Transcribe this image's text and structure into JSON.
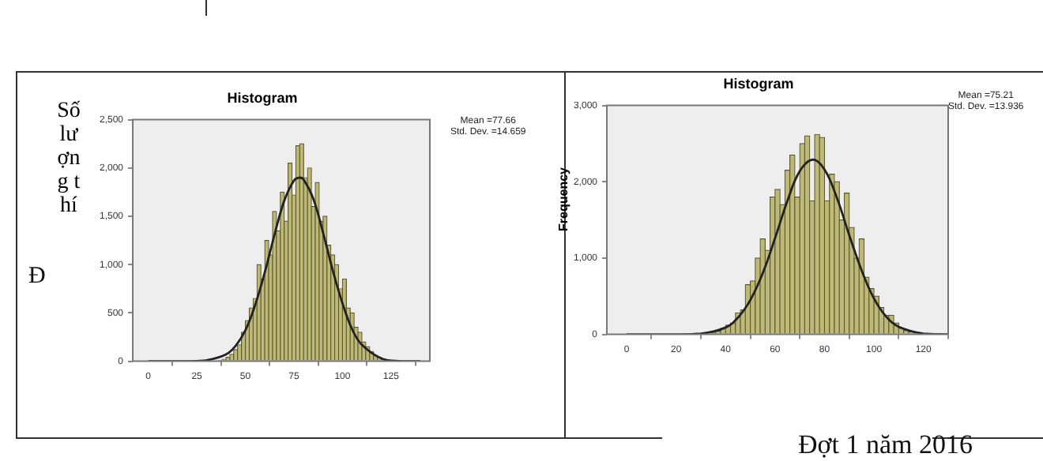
{
  "chart_data": [
    {
      "type": "histogram",
      "title": "Histogram",
      "ylabel": "Số lượng thí",
      "annotations": [
        "Mean =77.66",
        "Std. Dev. =14.659",
        "Đ"
      ],
      "bins": [
        36,
        38,
        40,
        42,
        44,
        46,
        48,
        50,
        52,
        54,
        56,
        58,
        60,
        62,
        64,
        66,
        68,
        70,
        72,
        74,
        76,
        78,
        80,
        82,
        84,
        86,
        88,
        90,
        92,
        94,
        96,
        98,
        100,
        102,
        104,
        106,
        108,
        110,
        112,
        114,
        116,
        118,
        120,
        122,
        124,
        126
      ],
      "values": [
        10,
        20,
        40,
        70,
        120,
        170,
        300,
        420,
        550,
        650,
        1000,
        850,
        1250,
        1100,
        1550,
        1350,
        1750,
        1450,
        2050,
        1720,
        2230,
        2250,
        1900,
        2000,
        1600,
        1850,
        1450,
        1500,
        1200,
        1100,
        1000,
        750,
        850,
        550,
        500,
        350,
        300,
        200,
        150,
        100,
        60,
        40,
        20,
        10,
        null
      ],
      "color": "#bfb977",
      "series": [
        {
          "type": "line",
          "color": "#222222",
          "x": [
            0,
            20,
            30,
            40,
            45,
            50,
            55,
            60,
            65,
            70,
            75,
            77.66,
            80,
            85,
            90,
            95,
            100,
            105,
            110,
            120,
            130,
            140
          ],
          "values": [
            0,
            0,
            10,
            70,
            160,
            320,
            580,
            920,
            1310,
            1660,
            1870,
            1900,
            1880,
            1680,
            1330,
            940,
            600,
            330,
            170,
            30,
            0,
            0
          ]
        }
      ],
      "xlim": [
        -8,
        145
      ],
      "xticks": [
        0,
        25,
        50,
        75,
        100,
        125
      ],
      "ylim": [
        0,
        2500
      ],
      "yticks": [
        0,
        {
          "value": 500,
          "label": "500"
        },
        {
          "value": 1000,
          "label": "1,000"
        },
        {
          "value": 1500,
          "label": "1,500"
        },
        {
          "value": 2000,
          "label": "2,000"
        },
        {
          "value": 2500,
          "label": "2,500"
        }
      ],
      "grid": false,
      "legend": false
    },
    {
      "type": "histogram",
      "title": "Histogram",
      "ylabel": "Frequency",
      "annotations": [
        "Mean =75.21",
        "Std. Dev. =13.936",
        "Đợt 1 năm 2016"
      ],
      "bins": [
        30,
        32,
        34,
        36,
        38,
        40,
        42,
        44,
        46,
        48,
        50,
        52,
        54,
        56,
        58,
        60,
        62,
        64,
        66,
        68,
        70,
        72,
        74,
        76,
        78,
        80,
        82,
        84,
        86,
        88,
        90,
        92,
        94,
        96,
        98,
        100,
        102,
        104,
        106,
        108,
        110,
        112,
        114,
        116,
        118,
        120
      ],
      "values": [
        10,
        null,
        20,
        40,
        80,
        120,
        150,
        280,
        320,
        650,
        700,
        1000,
        1250,
        1100,
        1800,
        1900,
        1700,
        2150,
        2350,
        1800,
        2500,
        2600,
        1750,
        2620,
        2580,
        1750,
        2100,
        2000,
        1500,
        1850,
        1400,
        1000,
        1250,
        750,
        600,
        500,
        350,
        250,
        250,
        150,
        80,
        50,
        30,
        20,
        10
      ],
      "color": "#bfb977",
      "series": [
        {
          "type": "line",
          "color": "#222222",
          "x": [
            0,
            20,
            30,
            40,
            45,
            50,
            55,
            60,
            65,
            70,
            75.21,
            80,
            85,
            90,
            95,
            100,
            105,
            110,
            120,
            130
          ],
          "values": [
            0,
            0,
            10,
            90,
            220,
            450,
            800,
            1260,
            1750,
            2140,
            2290,
            2160,
            1790,
            1300,
            840,
            470,
            230,
            100,
            10,
            0
          ]
        }
      ],
      "xlim": [
        -8,
        130
      ],
      "xticks": [
        0,
        20,
        40,
        60,
        80,
        100,
        120
      ],
      "ylim": [
        0,
        3000
      ],
      "yticks": [
        0,
        {
          "value": 1000,
          "label": "1,000"
        },
        {
          "value": 2000,
          "label": "2,000"
        },
        {
          "value": 3000,
          "label": "3,000"
        }
      ],
      "grid": false,
      "legend": false
    }
  ]
}
